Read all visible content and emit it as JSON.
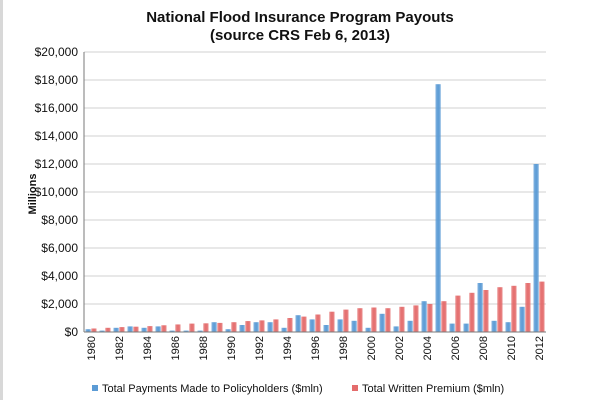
{
  "chart_data": {
    "type": "bar",
    "title": [
      "National Flood Insurance Program Payouts",
      "(source CRS Feb 6, 2013)"
    ],
    "ylabel": "Millions",
    "xlabel": "",
    "ylim": [
      0,
      20000
    ],
    "y_ticks": [
      "$0",
      "$2,000",
      "$4,000",
      "$6,000",
      "$8,000",
      "$10,000",
      "$12,000",
      "$14,000",
      "$16,000",
      "$18,000",
      "$20,000"
    ],
    "categories": [
      "1980",
      "1981",
      "1982",
      "1983",
      "1984",
      "1985",
      "1986",
      "1987",
      "1988",
      "1989",
      "1990",
      "1991",
      "1992",
      "1993",
      "1994",
      "1995",
      "1996",
      "1997",
      "1998",
      "1999",
      "2000",
      "2001",
      "2002",
      "2003",
      "2004",
      "2005",
      "2006",
      "2007",
      "2008",
      "2009",
      "2010",
      "2011",
      "2012"
    ],
    "x_tick_labels": [
      "1980",
      "1982",
      "1984",
      "1986",
      "1988",
      "1990",
      "1992",
      "1994",
      "1996",
      "1998",
      "2000",
      "2002",
      "2004",
      "2006",
      "2008",
      "2010",
      "2012"
    ],
    "series": [
      {
        "name": "Total Payments Made to Policyholders ($mln)",
        "color": "#5b9bd5",
        "values": [
          200,
          100,
          300,
          400,
          300,
          400,
          100,
          100,
          100,
          700,
          200,
          500,
          700,
          700,
          300,
          1200,
          900,
          500,
          900,
          800,
          300,
          1300,
          400,
          800,
          2200,
          17700,
          600,
          600,
          3500,
          800,
          700,
          1800,
          12000
        ]
      },
      {
        "name": "Total Written Premium ($mln)",
        "color": "#e46c6c",
        "values": [
          250,
          300,
          350,
          380,
          420,
          480,
          540,
          600,
          620,
          650,
          700,
          780,
          830,
          900,
          1000,
          1100,
          1250,
          1450,
          1600,
          1700,
          1750,
          1700,
          1800,
          1900,
          2000,
          2200,
          2600,
          2800,
          3000,
          3200,
          3300,
          3500,
          3600
        ]
      }
    ],
    "legend_position": "bottom",
    "grid": "horizontal"
  }
}
